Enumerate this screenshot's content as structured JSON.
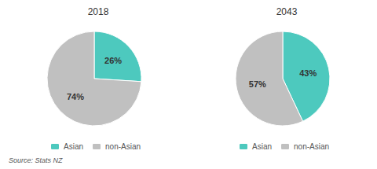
{
  "chart_data": [
    {
      "type": "pie",
      "title": "2018",
      "categories": [
        "Asian",
        "non-Asian"
      ],
      "values": [
        26,
        74
      ],
      "value_labels": [
        "26%",
        "74%"
      ],
      "colors": [
        "#4dc9be",
        "#c0c0c0"
      ],
      "data_labels": true,
      "legend": "bottom",
      "annotations": [
        "Source: Stats NZ"
      ]
    },
    {
      "type": "pie",
      "title": "2043",
      "categories": [
        "Asian",
        "non-Asian"
      ],
      "values": [
        43,
        57
      ],
      "value_labels": [
        "43%",
        "57%"
      ],
      "colors": [
        "#4dc9be",
        "#c0c0c0"
      ],
      "data_labels": true,
      "legend": "bottom"
    }
  ]
}
